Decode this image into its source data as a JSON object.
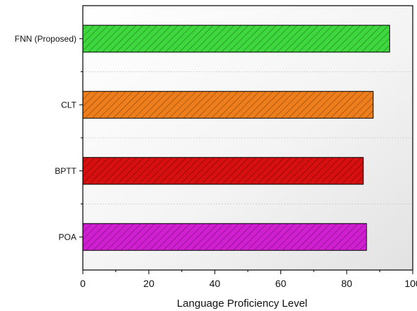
{
  "chart_data": {
    "type": "bar",
    "orientation": "horizontal",
    "categories": [
      "FNN (Proposed)",
      "CLT",
      "BPTT",
      "POA"
    ],
    "values": [
      93,
      88,
      85,
      86
    ],
    "colors": [
      "#3ed83e",
      "#ee7e1c",
      "#d70f0f",
      "#d01fd0"
    ],
    "xlabel": "Language Proficiency Level",
    "ylabel": "",
    "xlim": [
      0,
      100
    ],
    "xticks": [
      0,
      20,
      40,
      60,
      80,
      100
    ],
    "grid": false,
    "pattern": "diagonal-hatch"
  }
}
